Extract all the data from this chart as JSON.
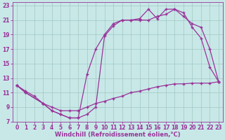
{
  "background_color": "#c8e8e8",
  "grid_color": "#a0c8c0",
  "line_color": "#993399",
  "markersize": 2.5,
  "linewidth": 0.9,
  "xlabel": "Windchill (Refroidissement éolien,°C)",
  "xlabel_fontsize": 6,
  "tick_fontsize": 5.5,
  "xlim": [
    -0.5,
    23.5
  ],
  "ylim": [
    7,
    23.5
  ],
  "yticks": [
    7,
    9,
    11,
    13,
    15,
    17,
    19,
    21,
    23
  ],
  "xticks": [
    0,
    1,
    2,
    3,
    4,
    5,
    6,
    7,
    8,
    9,
    10,
    11,
    12,
    13,
    14,
    15,
    16,
    17,
    18,
    19,
    20,
    21,
    22,
    23
  ],
  "curve1_x": [
    0,
    1,
    3,
    4,
    5,
    6,
    7,
    8,
    9,
    10,
    11,
    12,
    13,
    14,
    15,
    16,
    17,
    18,
    19,
    20,
    21,
    22,
    23
  ],
  "curve1_y": [
    12,
    11,
    9.5,
    8.5,
    8.0,
    7.5,
    7.5,
    8.0,
    9.0,
    18.8,
    20.2,
    21.0,
    21.0,
    21.2,
    22.5,
    21.2,
    22.5,
    22.5,
    22.0,
    20.0,
    18.5,
    14.5,
    12.5
  ],
  "curve2_x": [
    0,
    1,
    3,
    4,
    5,
    6,
    7,
    8,
    9,
    10,
    11,
    12,
    13,
    14,
    15,
    16,
    17,
    18,
    19,
    20,
    21,
    22,
    23
  ],
  "curve2_y": [
    12,
    11,
    9.5,
    8.5,
    8.0,
    7.5,
    7.5,
    13.5,
    17.0,
    19.0,
    20.5,
    21.0,
    21.0,
    21.0,
    21.0,
    21.5,
    21.8,
    22.5,
    21.5,
    20.5,
    20.0,
    17.0,
    12.5
  ],
  "curve3_x": [
    0,
    1,
    2,
    3,
    4,
    5,
    6,
    7,
    8,
    9,
    10,
    11,
    12,
    13,
    14,
    15,
    16,
    17,
    18,
    19,
    20,
    21,
    22,
    23
  ],
  "curve3_y": [
    12.0,
    11.2,
    10.5,
    9.5,
    9.0,
    8.5,
    8.5,
    8.5,
    9.0,
    9.5,
    9.8,
    10.2,
    10.5,
    11.0,
    11.2,
    11.5,
    11.8,
    12.0,
    12.2,
    12.2,
    12.3,
    12.3,
    12.3,
    12.5
  ]
}
